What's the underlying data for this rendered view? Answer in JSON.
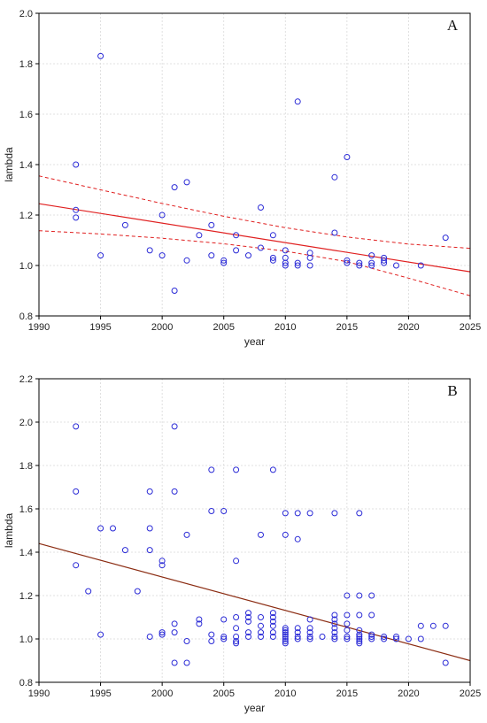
{
  "chart_data": [
    {
      "type": "scatter",
      "panel_label": "A",
      "xlabel": "year",
      "ylabel": "lambda",
      "xlim": [
        1990,
        2025
      ],
      "ylim": [
        0.8,
        2.0
      ],
      "xticks": [
        "1990",
        "1995",
        "2000",
        "2005",
        "2010",
        "2015",
        "2020",
        "2025"
      ],
      "yticks": [
        "0.8",
        "1.0",
        "1.2",
        "1.4",
        "1.6",
        "1.8",
        "2.0"
      ],
      "grid": true,
      "marker_color": "#2a2ad6",
      "line_color": "#e02020",
      "points": [
        [
          1993,
          1.4
        ],
        [
          1993,
          1.22
        ],
        [
          1993,
          1.19
        ],
        [
          1995,
          1.83
        ],
        [
          1995,
          1.04
        ],
        [
          1997,
          1.16
        ],
        [
          1999,
          1.06
        ],
        [
          2000,
          1.2
        ],
        [
          2000,
          1.04
        ],
        [
          2001,
          1.31
        ],
        [
          2001,
          0.9
        ],
        [
          2002,
          1.33
        ],
        [
          2002,
          1.02
        ],
        [
          2003,
          1.12
        ],
        [
          2004,
          1.16
        ],
        [
          2004,
          1.04
        ],
        [
          2005,
          1.02
        ],
        [
          2005,
          1.01
        ],
        [
          2006,
          1.12
        ],
        [
          2006,
          1.06
        ],
        [
          2007,
          1.04
        ],
        [
          2008,
          1.23
        ],
        [
          2008,
          1.07
        ],
        [
          2009,
          1.12
        ],
        [
          2009,
          1.03
        ],
        [
          2009,
          1.02
        ],
        [
          2010,
          1.06
        ],
        [
          2010,
          1.03
        ],
        [
          2010,
          1.01
        ],
        [
          2010,
          1.0
        ],
        [
          2011,
          1.65
        ],
        [
          2011,
          1.01
        ],
        [
          2011,
          1.0
        ],
        [
          2012,
          1.05
        ],
        [
          2012,
          1.03
        ],
        [
          2012,
          1.0
        ],
        [
          2014,
          1.35
        ],
        [
          2014,
          1.13
        ],
        [
          2015,
          1.43
        ],
        [
          2015,
          1.02
        ],
        [
          2015,
          1.01
        ],
        [
          2016,
          1.01
        ],
        [
          2016,
          1.0
        ],
        [
          2017,
          1.04
        ],
        [
          2017,
          1.01
        ],
        [
          2017,
          1.0
        ],
        [
          2018,
          1.03
        ],
        [
          2018,
          1.02
        ],
        [
          2018,
          1.01
        ],
        [
          2019,
          1.0
        ],
        [
          2021,
          1.0
        ],
        [
          2023,
          1.11
        ]
      ],
      "fit_line": {
        "x": [
          1990,
          2025
        ],
        "y": [
          1.245,
          0.975
        ]
      },
      "confidence_band": {
        "x": [
          1990,
          1995,
          2000,
          2005,
          2010,
          2015,
          2020,
          2025
        ],
        "upper": [
          1.355,
          1.3,
          1.246,
          1.195,
          1.15,
          1.113,
          1.085,
          1.068
        ],
        "lower": [
          1.138,
          1.125,
          1.108,
          1.086,
          1.057,
          1.015,
          0.95,
          0.88
        ]
      }
    },
    {
      "type": "scatter",
      "panel_label": "B",
      "xlabel": "year",
      "ylabel": "lambda",
      "xlim": [
        1990,
        2025
      ],
      "ylim": [
        0.8,
        2.2
      ],
      "xticks": [
        "1990",
        "1995",
        "2000",
        "2005",
        "2010",
        "2015",
        "2020",
        "2025"
      ],
      "yticks": [
        "0.8",
        "1.0",
        "1.2",
        "1.4",
        "1.6",
        "1.8",
        "2.0",
        "2.2"
      ],
      "grid": true,
      "marker_color": "#2a2ad6",
      "line_color": "#8b2c12",
      "points": [
        [
          1993,
          1.98
        ],
        [
          1993,
          1.68
        ],
        [
          1993,
          1.34
        ],
        [
          1994,
          1.22
        ],
        [
          1995,
          1.51
        ],
        [
          1995,
          1.02
        ],
        [
          1996,
          1.51
        ],
        [
          1997,
          1.41
        ],
        [
          1998,
          1.22
        ],
        [
          1999,
          1.68
        ],
        [
          1999,
          1.51
        ],
        [
          1999,
          1.41
        ],
        [
          1999,
          1.01
        ],
        [
          2000,
          1.36
        ],
        [
          2000,
          1.34
        ],
        [
          2000,
          1.03
        ],
        [
          2000,
          1.02
        ],
        [
          2001,
          1.98
        ],
        [
          2001,
          1.68
        ],
        [
          2001,
          1.07
        ],
        [
          2001,
          1.03
        ],
        [
          2001,
          0.89
        ],
        [
          2002,
          1.48
        ],
        [
          2002,
          0.99
        ],
        [
          2002,
          0.89
        ],
        [
          2003,
          1.09
        ],
        [
          2003,
          1.07
        ],
        [
          2004,
          1.78
        ],
        [
          2004,
          1.59
        ],
        [
          2004,
          1.02
        ],
        [
          2004,
          0.99
        ],
        [
          2005,
          1.59
        ],
        [
          2005,
          1.09
        ],
        [
          2005,
          1.01
        ],
        [
          2005,
          1.0
        ],
        [
          2006,
          1.78
        ],
        [
          2006,
          1.36
        ],
        [
          2006,
          1.1
        ],
        [
          2006,
          1.05
        ],
        [
          2006,
          1.01
        ],
        [
          2006,
          0.99
        ],
        [
          2006,
          0.98
        ],
        [
          2007,
          1.12
        ],
        [
          2007,
          1.1
        ],
        [
          2007,
          1.08
        ],
        [
          2007,
          1.03
        ],
        [
          2007,
          1.01
        ],
        [
          2008,
          1.48
        ],
        [
          2008,
          1.1
        ],
        [
          2008,
          1.06
        ],
        [
          2008,
          1.03
        ],
        [
          2008,
          1.01
        ],
        [
          2009,
          1.78
        ],
        [
          2009,
          1.12
        ],
        [
          2009,
          1.1
        ],
        [
          2009,
          1.08
        ],
        [
          2009,
          1.06
        ],
        [
          2009,
          1.03
        ],
        [
          2009,
          1.01
        ],
        [
          2010,
          1.58
        ],
        [
          2010,
          1.48
        ],
        [
          2010,
          1.05
        ],
        [
          2010,
          1.04
        ],
        [
          2010,
          1.03
        ],
        [
          2010,
          1.02
        ],
        [
          2010,
          1.01
        ],
        [
          2010,
          1.0
        ],
        [
          2010,
          0.99
        ],
        [
          2010,
          0.98
        ],
        [
          2011,
          1.58
        ],
        [
          2011,
          1.46
        ],
        [
          2011,
          1.05
        ],
        [
          2011,
          1.03
        ],
        [
          2011,
          1.01
        ],
        [
          2011,
          1.0
        ],
        [
          2012,
          1.58
        ],
        [
          2012,
          1.09
        ],
        [
          2012,
          1.05
        ],
        [
          2012,
          1.03
        ],
        [
          2012,
          1.01
        ],
        [
          2012,
          1.0
        ],
        [
          2013,
          1.01
        ],
        [
          2014,
          1.58
        ],
        [
          2014,
          1.11
        ],
        [
          2014,
          1.09
        ],
        [
          2014,
          1.07
        ],
        [
          2014,
          1.05
        ],
        [
          2014,
          1.03
        ],
        [
          2014,
          1.01
        ],
        [
          2014,
          1.0
        ],
        [
          2015,
          1.2
        ],
        [
          2015,
          1.11
        ],
        [
          2015,
          1.07
        ],
        [
          2015,
          1.04
        ],
        [
          2015,
          1.01
        ],
        [
          2015,
          1.0
        ],
        [
          2016,
          1.58
        ],
        [
          2016,
          1.2
        ],
        [
          2016,
          1.11
        ],
        [
          2016,
          1.04
        ],
        [
          2016,
          1.02
        ],
        [
          2016,
          1.01
        ],
        [
          2016,
          1.0
        ],
        [
          2016,
          0.99
        ],
        [
          2016,
          0.98
        ],
        [
          2017,
          1.2
        ],
        [
          2017,
          1.11
        ],
        [
          2017,
          1.02
        ],
        [
          2017,
          1.01
        ],
        [
          2017,
          1.0
        ],
        [
          2018,
          1.01
        ],
        [
          2018,
          1.0
        ],
        [
          2019,
          1.01
        ],
        [
          2019,
          1.0
        ],
        [
          2020,
          1.0
        ],
        [
          2021,
          1.06
        ],
        [
          2021,
          1.0
        ],
        [
          2022,
          1.06
        ],
        [
          2023,
          1.06
        ],
        [
          2023,
          0.89
        ]
      ],
      "fit_line": {
        "x": [
          1990,
          2025
        ],
        "y": [
          1.44,
          0.9
        ]
      }
    }
  ]
}
